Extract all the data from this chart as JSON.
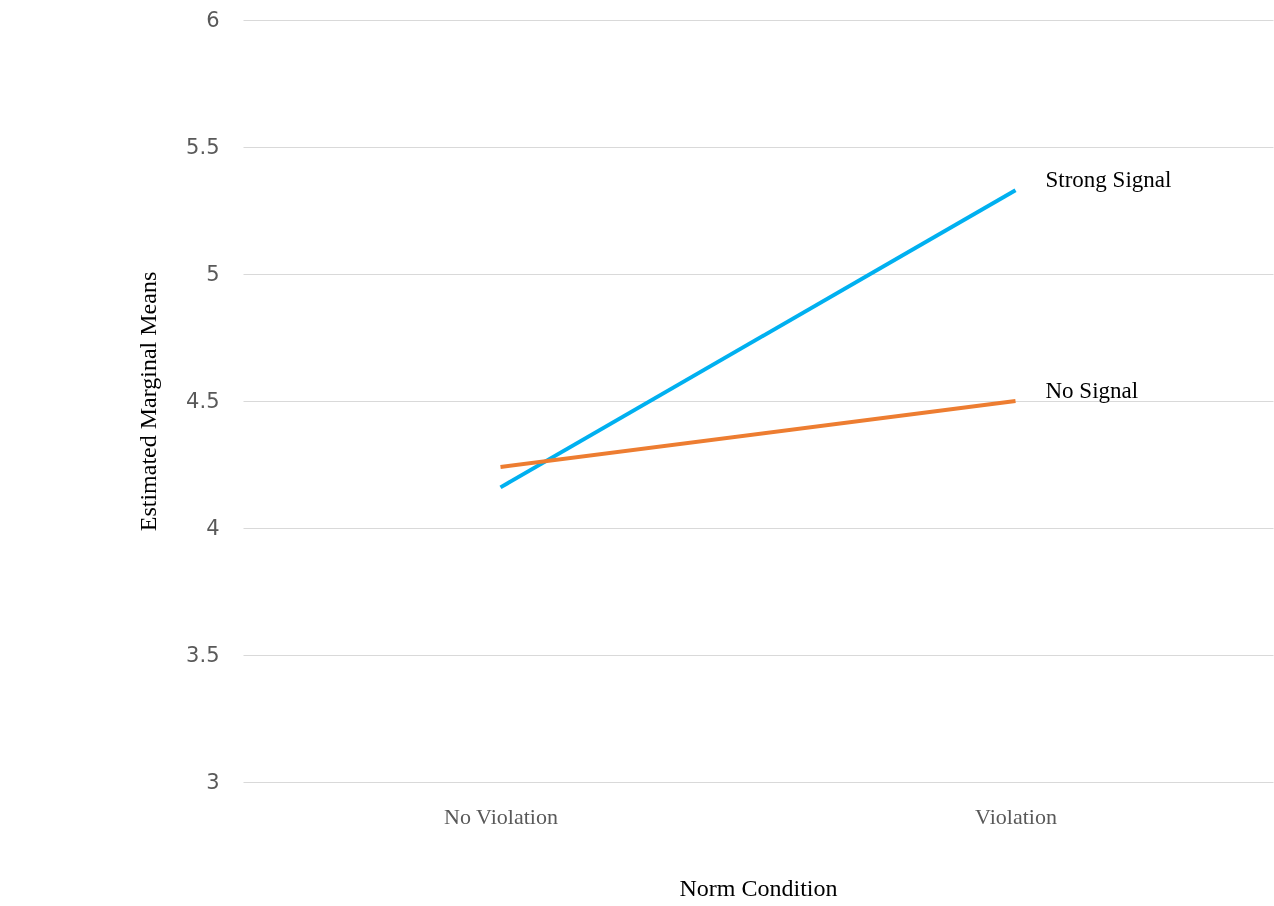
{
  "chart_data": {
    "type": "line",
    "xlabel": "Norm Condition",
    "ylabel": "Estimated Marginal Means",
    "categories": [
      "No Violation",
      "Violation"
    ],
    "series": [
      {
        "name": "Strong Signal",
        "color": "#00b0f0",
        "values": [
          4.16,
          5.33
        ]
      },
      {
        "name": "No Signal",
        "color": "#ed7d31",
        "values": [
          4.24,
          4.5
        ]
      }
    ],
    "ylim": [
      3,
      6
    ],
    "yticks": [
      3,
      3.5,
      4,
      4.5,
      5,
      5.5,
      6
    ],
    "grid": "y",
    "marker": "none",
    "line_style": "solid"
  }
}
